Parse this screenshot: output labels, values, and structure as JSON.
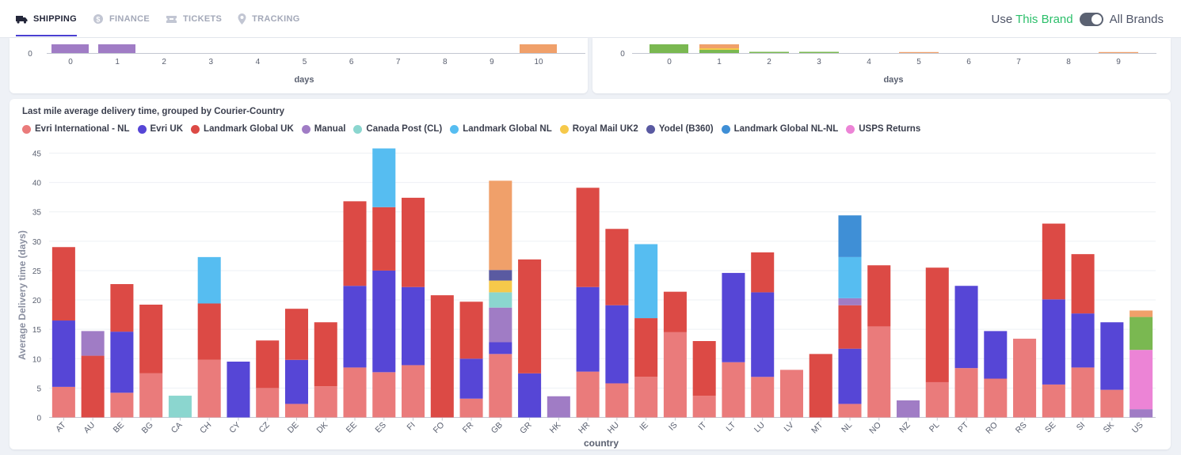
{
  "tabs": [
    {
      "label": "SHIPPING",
      "icon": "truck-icon",
      "active": true
    },
    {
      "label": "FINANCE",
      "icon": "coins-icon",
      "active": false
    },
    {
      "label": "TICKETS",
      "icon": "ticket-icon",
      "active": false
    },
    {
      "label": "TRACKING",
      "icon": "location-pin-icon",
      "active": false
    }
  ],
  "brand_switch": {
    "prefix": "Use",
    "highlight": "This Brand",
    "other": "All Brands"
  },
  "top_left_chart": {
    "xlabel": "days",
    "y_zero": "0",
    "ticks": [
      "0",
      "1",
      "2",
      "3",
      "4",
      "5",
      "6",
      "7",
      "8",
      "9",
      "10"
    ]
  },
  "top_right_chart": {
    "xlabel": "days",
    "y_zero": "0",
    "ticks": [
      "0",
      "1",
      "2",
      "3",
      "4",
      "5",
      "6",
      "7",
      "8",
      "9"
    ]
  },
  "main_chart": {
    "title": "Last mile average delivery time, grouped by Courier-Country",
    "ylabel": "Average Delivery time (days)",
    "xlabel": "country"
  },
  "chart_data": {
    "type": "bar",
    "stacked": true,
    "title": "Last mile average delivery time, grouped by Courier-Country",
    "xlabel": "country",
    "ylabel": "Average Delivery time (days)",
    "ylim": [
      0,
      45
    ],
    "yticks": [
      0,
      5,
      10,
      15,
      20,
      25,
      30,
      35,
      40,
      45
    ],
    "legend_position": "top-left",
    "categories": [
      "AT",
      "AU",
      "BE",
      "BG",
      "CA",
      "CH",
      "CY",
      "CZ",
      "DE",
      "DK",
      "EE",
      "ES",
      "FI",
      "FO",
      "FR",
      "GB",
      "GR",
      "HK",
      "HR",
      "HU",
      "IE",
      "IS",
      "IT",
      "LT",
      "LU",
      "LV",
      "MT",
      "NL",
      "NO",
      "NZ",
      "PL",
      "PT",
      "RO",
      "RS",
      "SE",
      "SI",
      "SK",
      "US"
    ],
    "series": [
      {
        "name": "Evri International - NL",
        "color": "#ea7b7b",
        "values": [
          5.2,
          0,
          4.2,
          7.5,
          0,
          9.8,
          0,
          5,
          2.3,
          5.3,
          8.5,
          7.7,
          8.9,
          0,
          3.2,
          10.8,
          0,
          0,
          7.8,
          5.8,
          6.9,
          14.5,
          3.7,
          9.4,
          6.9,
          8.1,
          0,
          2.3,
          15.5,
          0,
          6,
          8.4,
          6.6,
          13.4,
          5.6,
          8.5,
          4.7,
          0
        ]
      },
      {
        "name": "Evri UK",
        "color": "#5646d6",
        "values": [
          11.3,
          0,
          10.4,
          0,
          0,
          0,
          9.5,
          0,
          7.5,
          0,
          13.9,
          17.3,
          13.3,
          0,
          6.8,
          2,
          7.5,
          0,
          14.4,
          13.3,
          0,
          0,
          0,
          15.2,
          14.4,
          0,
          0,
          9.4,
          0,
          0,
          0,
          14,
          8.1,
          0,
          14.5,
          9.2,
          11.5,
          0
        ]
      },
      {
        "name": "Landmark Global UK",
        "color": "#dc4a45",
        "values": [
          12.5,
          10.5,
          8.1,
          11.7,
          0,
          9.6,
          0,
          8.1,
          8.7,
          10.9,
          14.4,
          10.8,
          15.2,
          20.8,
          9.7,
          0,
          19.4,
          0,
          16.9,
          13,
          10,
          6.9,
          9.3,
          0,
          6.8,
          0,
          10.8,
          7.4,
          10.4,
          0,
          19.5,
          0,
          0,
          0,
          12.9,
          10.1,
          0,
          0
        ]
      },
      {
        "name": "Manual",
        "color": "#a07cc5",
        "values": [
          0,
          4.2,
          0,
          0,
          0,
          0,
          0,
          0,
          0,
          0,
          0,
          0,
          0,
          0,
          0,
          5.9,
          0,
          3.6,
          0,
          0,
          0,
          0,
          0,
          0,
          0,
          0,
          0,
          1.2,
          0,
          2.9,
          0,
          0,
          0,
          0,
          0,
          0,
          0,
          1.4
        ]
      },
      {
        "name": "Canada Post (CL)",
        "color": "#8bd6cf",
        "values": [
          0,
          0,
          0,
          0,
          3.7,
          0,
          0,
          0,
          0,
          0,
          0,
          0,
          0,
          0,
          0,
          2.6,
          0,
          0,
          0,
          0,
          0,
          0,
          0,
          0,
          0,
          0,
          0,
          0,
          0,
          0,
          0,
          0,
          0,
          0,
          0,
          0,
          0,
          0
        ]
      },
      {
        "name": "Landmark Global NL",
        "color": "#56bdf1",
        "values": [
          0,
          0,
          0,
          0,
          0,
          7.9,
          0,
          0,
          0,
          0,
          0,
          10,
          0,
          0,
          0,
          0,
          0,
          0,
          0,
          0,
          12.6,
          0,
          0,
          0,
          0,
          0,
          0,
          7,
          0,
          0,
          0,
          0,
          0,
          0,
          0,
          0,
          0,
          0
        ]
      },
      {
        "name": "Royal Mail UK2",
        "color": "#f6c94a",
        "values": [
          0,
          0,
          0,
          0,
          0,
          0,
          0,
          0,
          0,
          0,
          0,
          0,
          0,
          0,
          0,
          2,
          0,
          0,
          0,
          0,
          0,
          0,
          0,
          0,
          0,
          0,
          0,
          0,
          0,
          0,
          0,
          0,
          0,
          0,
          0,
          0,
          0,
          0
        ]
      },
      {
        "name": "Yodel (B360)",
        "color": "#5a5aa1",
        "values": [
          0,
          0,
          0,
          0,
          0,
          0,
          0,
          0,
          0,
          0,
          0,
          0,
          0,
          0,
          0,
          1.8,
          0,
          0,
          0,
          0,
          0,
          0,
          0,
          0,
          0,
          0,
          0,
          0,
          0,
          0,
          0,
          0,
          0,
          0,
          0,
          0,
          0,
          0
        ]
      },
      {
        "name": "Landmark Global NL-NL",
        "color": "#3f8fd6",
        "values": [
          0,
          0,
          0,
          0,
          0,
          0,
          0,
          0,
          0,
          0,
          0,
          0,
          0,
          0,
          0,
          0,
          0,
          0,
          0,
          0,
          0,
          0,
          0,
          0,
          0,
          0,
          0,
          7.1,
          0,
          0,
          0,
          0,
          0,
          0,
          0,
          0,
          0,
          0
        ]
      },
      {
        "name": "USPS Returns",
        "color": "#ec84d6",
        "values": [
          0,
          0,
          0,
          0,
          0,
          0,
          0,
          0,
          0,
          0,
          0,
          0,
          0,
          0,
          0,
          0,
          0,
          0,
          0,
          0,
          0,
          0,
          0,
          0,
          0,
          0,
          0,
          0,
          0,
          0,
          0,
          0,
          0,
          0,
          0,
          0,
          0,
          10.1
        ]
      },
      {
        "name": "",
        "color": "#7ab851",
        "values": [
          0,
          0,
          0,
          0,
          0,
          0,
          0,
          0,
          0,
          0,
          0,
          0,
          0,
          0,
          0,
          0,
          0,
          0,
          0,
          0,
          0,
          0,
          0,
          0,
          0,
          0,
          0,
          0,
          0,
          0,
          0,
          0,
          0,
          0,
          0,
          0,
          0,
          5.6
        ]
      },
      {
        "name": "",
        "color": "#f0a06a",
        "values": [
          0,
          0,
          0,
          0,
          0,
          0,
          0,
          0,
          0,
          0,
          0,
          0,
          0,
          0,
          0,
          15.2,
          0,
          0,
          0,
          0,
          0,
          0,
          0,
          0,
          0,
          0,
          0,
          0,
          0,
          0,
          0,
          0,
          0,
          0,
          0,
          0,
          0,
          1.1
        ]
      }
    ]
  }
}
